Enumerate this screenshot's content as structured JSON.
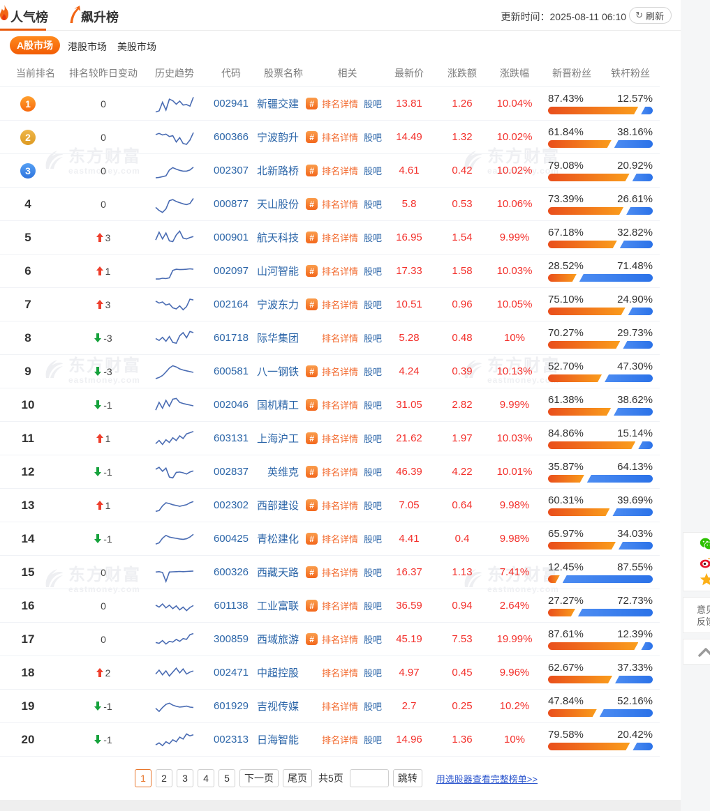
{
  "header": {
    "tabs": [
      {
        "label": "人气榜",
        "active": true
      },
      {
        "label": "飙升榜",
        "active": false
      }
    ],
    "updated": "更新时间：2025-08-11 06:10",
    "refresh_label": "刷新"
  },
  "market_tabs": [
    {
      "label": "A股市场",
      "active": true
    },
    {
      "label": "港股市场",
      "active": false
    },
    {
      "label": "美股市场",
      "active": false
    }
  ],
  "table": {
    "columns": [
      "当前排名",
      "排名较昨日变动",
      "历史趋势",
      "代码",
      "股票名称",
      "相关",
      "最新价",
      "涨跌额",
      "涨跌幅",
      "新晋粉丝",
      "铁杆粉丝"
    ],
    "related_labels": {
      "detail": "排名详情",
      "guba": "股吧",
      "hash": "#"
    },
    "rows": [
      {
        "rank": "1",
        "badge": "orange",
        "change": "0",
        "dir": "none",
        "code": "002941",
        "name": "新疆交建",
        "hash": true,
        "price": "13.81",
        "chg": "1.26",
        "pct": "10.04%",
        "new_fans": "87.43%",
        "iron_fans": "12.57%",
        "new_val": 87.43,
        "trend": [
          12,
          18,
          62,
          22,
          78,
          70,
          52,
          68,
          48,
          50,
          42,
          88
        ]
      },
      {
        "rank": "2",
        "badge": "gold",
        "change": "0",
        "dir": "none",
        "code": "600366",
        "name": "宁波韵升",
        "hash": true,
        "price": "14.49",
        "chg": "1.32",
        "pct": "10.02%",
        "new_fans": "61.84%",
        "iron_fans": "38.16%",
        "new_val": 61.84,
        "trend": [
          68,
          74,
          66,
          70,
          58,
          62,
          30,
          52,
          22,
          18,
          40,
          78
        ]
      },
      {
        "rank": "3",
        "badge": "blue",
        "change": "0",
        "dir": "none",
        "code": "002307",
        "name": "北新路桥",
        "hash": true,
        "price": "4.61",
        "chg": "0.42",
        "pct": "10.02%",
        "new_fans": "79.08%",
        "iron_fans": "20.92%",
        "new_val": 79.08,
        "trend": [
          18,
          20,
          24,
          28,
          58,
          70,
          62,
          56,
          52,
          52,
          58,
          72
        ]
      },
      {
        "rank": "4",
        "badge": "",
        "change": "0",
        "dir": "none",
        "code": "000877",
        "name": "天山股份",
        "hash": true,
        "price": "5.8",
        "chg": "0.53",
        "pct": "10.06%",
        "new_fans": "73.39%",
        "iron_fans": "26.61%",
        "new_val": 73.39,
        "trend": [
          38,
          22,
          12,
          30,
          72,
          78,
          68,
          62,
          56,
          52,
          58,
          84
        ]
      },
      {
        "rank": "5",
        "badge": "",
        "change": "3",
        "dir": "up",
        "code": "000901",
        "name": "航天科技",
        "hash": true,
        "price": "16.95",
        "chg": "1.54",
        "pct": "9.99%",
        "new_fans": "67.18%",
        "iron_fans": "32.82%",
        "new_val": 67.18,
        "trend": [
          42,
          82,
          48,
          78,
          38,
          34,
          68,
          88,
          52,
          48,
          55,
          60
        ]
      },
      {
        "rank": "6",
        "badge": "",
        "change": "1",
        "dir": "up",
        "code": "002097",
        "name": "山河智能",
        "hash": true,
        "price": "17.33",
        "chg": "1.58",
        "pct": "10.03%",
        "new_fans": "28.52%",
        "iron_fans": "71.48%",
        "new_val": 28.52,
        "trend": [
          14,
          14,
          18,
          16,
          20,
          58,
          64,
          62,
          63,
          64,
          66,
          64
        ]
      },
      {
        "rank": "7",
        "badge": "",
        "change": "3",
        "dir": "up",
        "code": "002164",
        "name": "宁波东力",
        "hash": true,
        "price": "10.51",
        "chg": "0.96",
        "pct": "10.05%",
        "new_fans": "75.10%",
        "iron_fans": "24.90%",
        "new_val": 75.1,
        "trend": [
          72,
          62,
          68,
          52,
          58,
          38,
          32,
          48,
          28,
          44,
          82,
          78
        ]
      },
      {
        "rank": "8",
        "badge": "",
        "change": "-3",
        "dir": "down",
        "code": "601718",
        "name": "际华集团",
        "hash": false,
        "price": "5.28",
        "chg": "0.48",
        "pct": "10%",
        "new_fans": "70.27%",
        "iron_fans": "29.73%",
        "new_val": 70.27,
        "trend": [
          52,
          42,
          58,
          38,
          62,
          32,
          28,
          66,
          82,
          56,
          88,
          82
        ]
      },
      {
        "rank": "9",
        "badge": "",
        "change": "-3",
        "dir": "down",
        "code": "600581",
        "name": "八一钢铁",
        "hash": true,
        "price": "4.24",
        "chg": "0.39",
        "pct": "10.13%",
        "new_fans": "52.70%",
        "iron_fans": "47.30%",
        "new_val": 52.7,
        "trend": [
          18,
          24,
          34,
          52,
          72,
          84,
          78,
          68,
          62,
          58,
          54,
          50
        ]
      },
      {
        "rank": "10",
        "badge": "",
        "change": "-1",
        "dir": "down",
        "code": "002046",
        "name": "国机精工",
        "hash": true,
        "price": "31.05",
        "chg": "2.82",
        "pct": "9.99%",
        "new_fans": "61.38%",
        "iron_fans": "38.62%",
        "new_val": 61.38,
        "trend": [
          28,
          68,
          38,
          78,
          48,
          84,
          88,
          68,
          62,
          58,
          54,
          50
        ]
      },
      {
        "rank": "11",
        "badge": "",
        "change": "1",
        "dir": "up",
        "code": "603131",
        "name": "上海沪工",
        "hash": true,
        "price": "21.62",
        "chg": "1.97",
        "pct": "10.03%",
        "new_fans": "84.86%",
        "iron_fans": "15.14%",
        "new_val": 84.86,
        "trend": [
          28,
          44,
          24,
          48,
          34,
          58,
          44,
          68,
          54,
          78,
          84,
          90
        ]
      },
      {
        "rank": "12",
        "badge": "",
        "change": "-1",
        "dir": "down",
        "code": "002837",
        "name": "英维克",
        "hash": true,
        "price": "46.39",
        "chg": "4.22",
        "pct": "10.01%",
        "new_fans": "35.87%",
        "iron_fans": "64.13%",
        "new_val": 35.87,
        "trend": [
          68,
          78,
          58,
          74,
          28,
          24,
          52,
          54,
          50,
          44,
          54,
          60
        ]
      },
      {
        "rank": "13",
        "badge": "",
        "change": "1",
        "dir": "up",
        "code": "002302",
        "name": "西部建设",
        "hash": true,
        "price": "7.05",
        "chg": "0.64",
        "pct": "9.98%",
        "new_fans": "60.31%",
        "iron_fans": "39.69%",
        "new_val": 60.31,
        "trend": [
          24,
          28,
          52,
          68,
          64,
          58,
          54,
          50,
          54,
          58,
          68,
          74
        ]
      },
      {
        "rank": "14",
        "badge": "",
        "change": "-1",
        "dir": "down",
        "code": "600425",
        "name": "青松建化",
        "hash": true,
        "price": "4.41",
        "chg": "0.4",
        "pct": "9.98%",
        "new_fans": "65.97%",
        "iron_fans": "34.03%",
        "new_val": 65.97,
        "trend": [
          28,
          34,
          58,
          72,
          64,
          60,
          57,
          54,
          52,
          55,
          64,
          78
        ]
      },
      {
        "rank": "15",
        "badge": "",
        "change": "0",
        "dir": "none",
        "code": "600326",
        "name": "西藏天路",
        "hash": true,
        "price": "16.37",
        "chg": "1.13",
        "pct": "7.41%",
        "new_fans": "12.45%",
        "iron_fans": "87.55%",
        "new_val": 12.45,
        "trend": [
          56,
          58,
          54,
          8,
          56,
          57,
          58,
          59,
          58,
          59,
          60,
          61
        ]
      },
      {
        "rank": "16",
        "badge": "",
        "change": "0",
        "dir": "none",
        "code": "601138",
        "name": "工业富联",
        "hash": true,
        "price": "36.59",
        "chg": "0.94",
        "pct": "2.64%",
        "new_fans": "27.27%",
        "iron_fans": "72.73%",
        "new_val": 27.27,
        "trend": [
          58,
          48,
          64,
          44,
          58,
          40,
          54,
          34,
          48,
          30,
          46,
          56
        ]
      },
      {
        "rank": "17",
        "badge": "",
        "change": "0",
        "dir": "none",
        "code": "300859",
        "name": "西域旅游",
        "hash": true,
        "price": "45.19",
        "chg": "7.53",
        "pct": "19.99%",
        "new_fans": "87.61%",
        "iron_fans": "12.39%",
        "new_val": 87.61,
        "trend": [
          38,
          34,
          48,
          30,
          44,
          40,
          54,
          44,
          58,
          54,
          78,
          84
        ]
      },
      {
        "rank": "18",
        "badge": "",
        "change": "2",
        "dir": "up",
        "code": "002471",
        "name": "中超控股",
        "hash": false,
        "price": "4.97",
        "chg": "0.45",
        "pct": "9.96%",
        "new_fans": "62.67%",
        "iron_fans": "37.33%",
        "new_val": 62.67,
        "trend": [
          48,
          68,
          44,
          64,
          38,
          58,
          78,
          54,
          74,
          48,
          58,
          64
        ]
      },
      {
        "rank": "19",
        "badge": "",
        "change": "-1",
        "dir": "down",
        "code": "601929",
        "name": "吉视传媒",
        "hash": false,
        "price": "2.7",
        "chg": "0.25",
        "pct": "10.2%",
        "new_fans": "47.84%",
        "iron_fans": "52.16%",
        "new_val": 47.84,
        "trend": [
          44,
          28,
          48,
          64,
          70,
          60,
          54,
          50,
          52,
          55,
          50,
          48
        ]
      },
      {
        "rank": "20",
        "badge": "",
        "change": "-1",
        "dir": "down",
        "code": "002313",
        "name": "日海智能",
        "hash": false,
        "price": "14.96",
        "chg": "1.36",
        "pct": "10%",
        "new_fans": "79.58%",
        "iron_fans": "20.42%",
        "new_val": 79.58,
        "trend": [
          28,
          38,
          24,
          44,
          34,
          54,
          44,
          68,
          58,
          84,
          74,
          80
        ]
      }
    ]
  },
  "pagination": {
    "pages": [
      "1",
      "2",
      "3",
      "4",
      "5"
    ],
    "active_page": "1",
    "next_label": "下一页",
    "last_label": "尾页",
    "total_label": "共5页",
    "jump_label": "跳转",
    "full_list_link": "用选股器查看完整榜单>>"
  },
  "watermark": {
    "text": "东方财富",
    "sub": "eastmoney.com"
  },
  "side_panel": {
    "feedback": "意见反馈"
  },
  "colors": {
    "accent_orange": "#f2672a",
    "value_red": "#f3302b",
    "link_blue": "#2b65a8",
    "up_red": "#ee3f2d",
    "down_green": "#16a23c",
    "bar_orange": "#f06020",
    "bar_blue": "#2b72e8"
  }
}
